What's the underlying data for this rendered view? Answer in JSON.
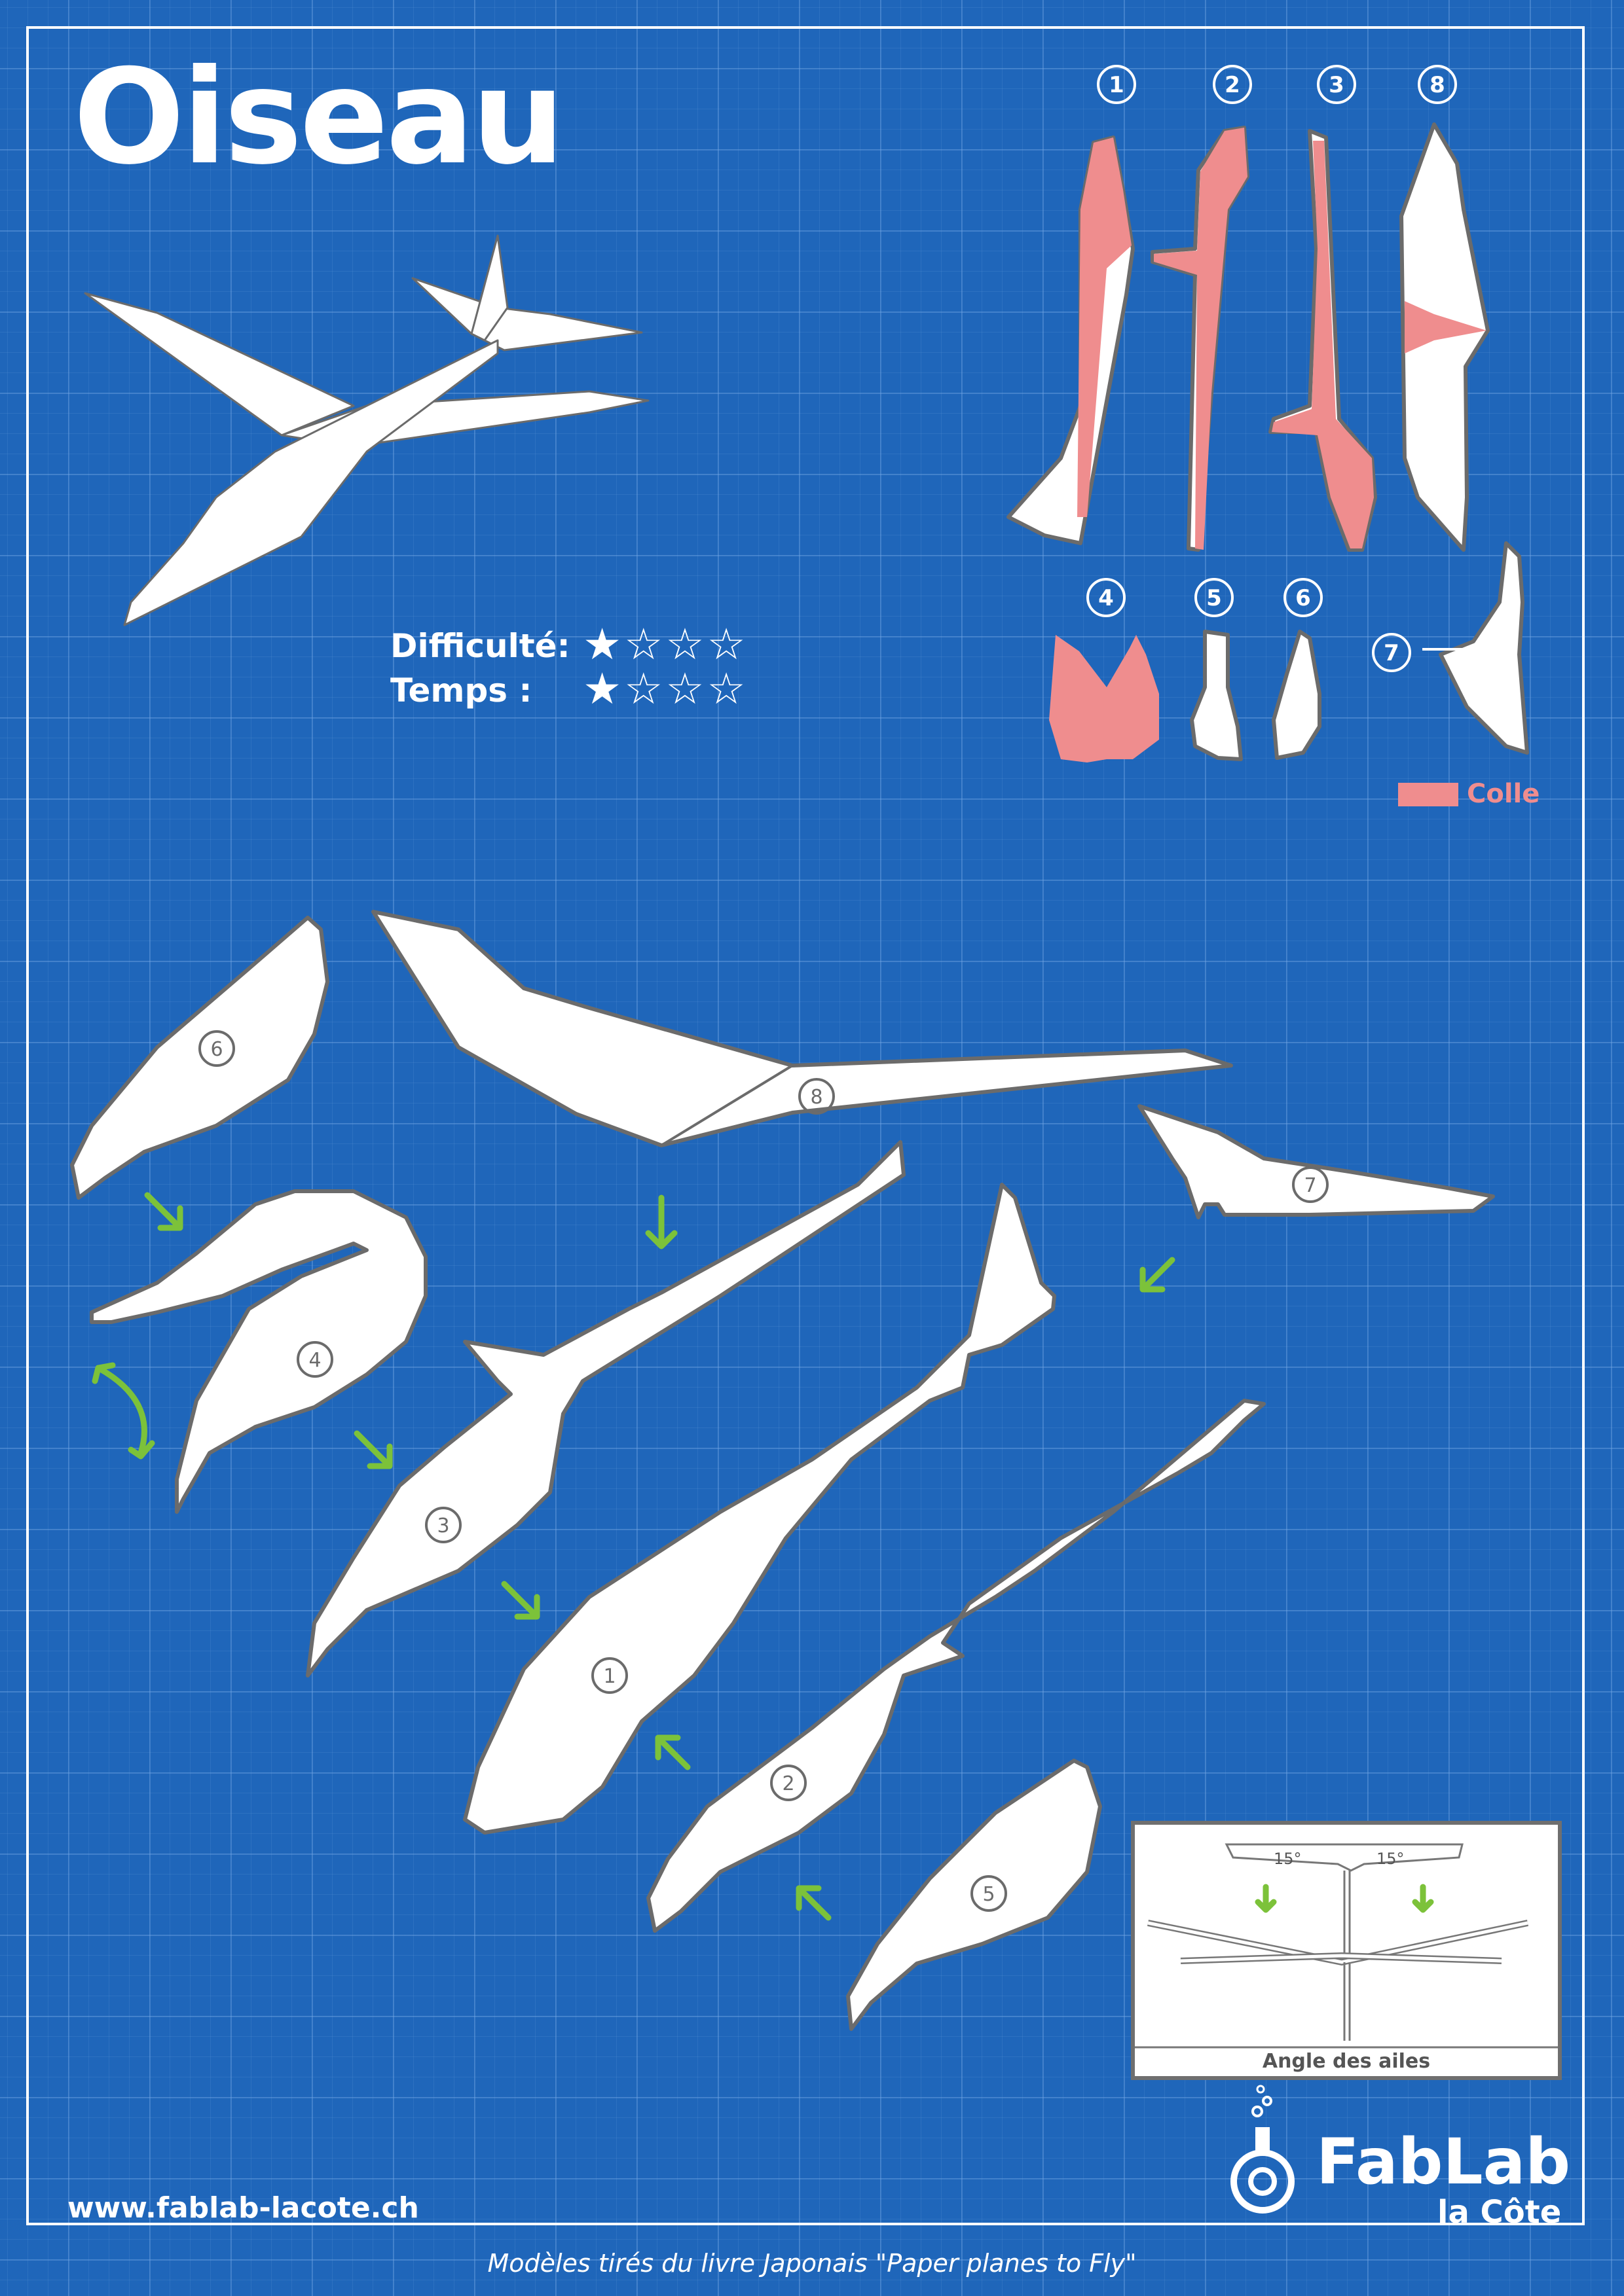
{
  "title": "Oiseau",
  "ratings": {
    "difficulty_label": "Difficulté:",
    "difficulty_stars": "★☆☆☆",
    "difficulty_value": 1,
    "time_label": "Temps :",
    "time_stars": "★☆☆☆",
    "time_value": 1,
    "max": 4
  },
  "legend": {
    "label": "Colle",
    "color": "#ef8d8e"
  },
  "step_numbers": [
    "1",
    "2",
    "3",
    "8",
    "4",
    "5",
    "6",
    "7"
  ],
  "part_numbers": [
    "6",
    "8",
    "7",
    "4",
    "3",
    "1",
    "2",
    "5"
  ],
  "angle_diagram": {
    "left_angle": "15°",
    "right_angle": "15°",
    "caption": "Angle des ailes"
  },
  "website": "www.fablab-lacote.ch",
  "brand": {
    "name": "FabLab",
    "sub": "la Côte"
  },
  "credit": "Modèles tirés du livre Japonais \"Paper planes to Fly\"",
  "colors": {
    "background": "#1f66ba",
    "glue": "#ef8d8e",
    "part_fill": "#ffffff",
    "outline": "#6b6b6b",
    "arrow": "#7cc23a"
  }
}
